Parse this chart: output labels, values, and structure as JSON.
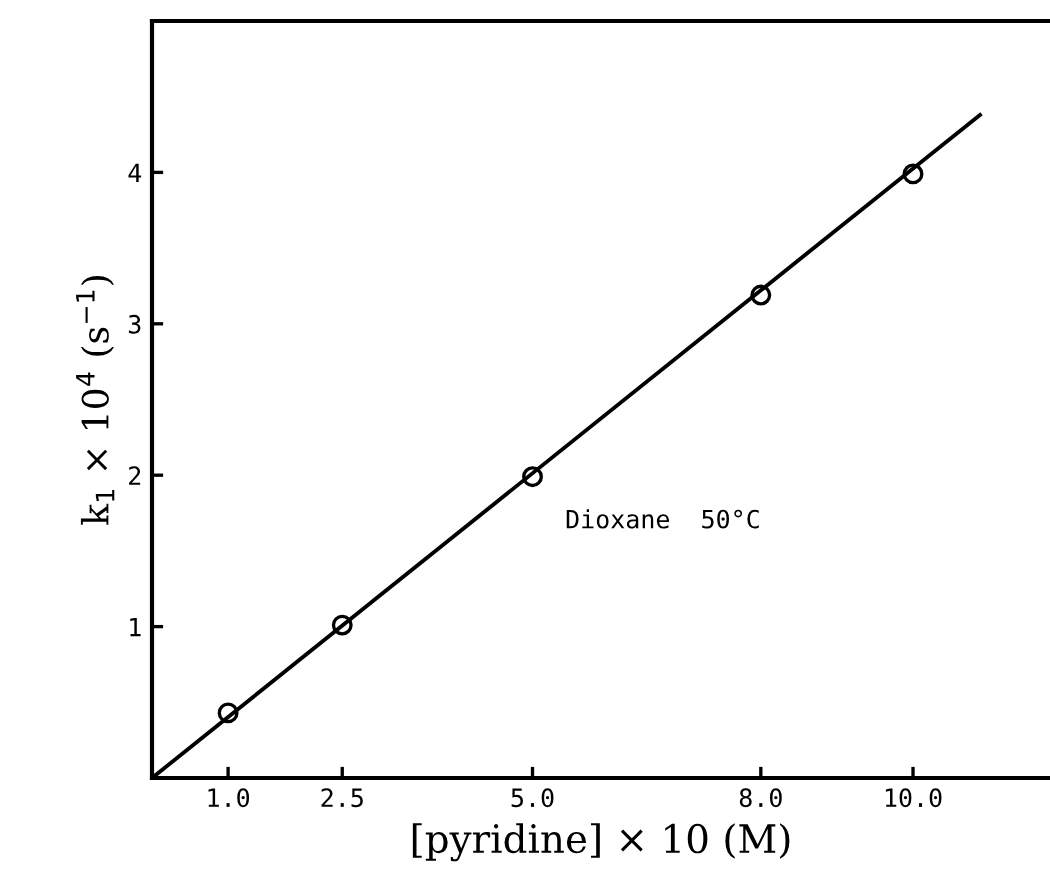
{
  "chart_data": {
    "type": "scatter",
    "xlabel": "[pyridine] × 10 (M)",
    "ylabel": "k$_{1}$ × 10$^{4}$ (s$^{−1}$)",
    "xlim": [
      0,
      11.8
    ],
    "ylim": [
      0,
      5
    ],
    "xticks": [
      {
        "value": 1,
        "label": "1.0"
      },
      {
        "value": 2.5,
        "label": "2.5"
      },
      {
        "value": 5,
        "label": "5.0"
      },
      {
        "value": 8,
        "label": "8.0"
      },
      {
        "value": 10,
        "label": "10.0"
      }
    ],
    "yticks": [
      1,
      2,
      3,
      4
    ],
    "annotations": [
      "Dioxane  50°C"
    ],
    "grid": false,
    "legend": false,
    "series": [
      {
        "color": "#000000",
        "marker": "circle",
        "x": [
          1.0,
          2.5,
          5.0,
          8.0,
          10.0
        ],
        "values": [
          0.43,
          1.01,
          1.99,
          3.19,
          3.99
        ]
      },
      {
        "type": "line",
        "color": "#000000",
        "marker": "none",
        "line_style": "solid",
        "x": [
          0,
          10.88
        ],
        "values": [
          0,
          4.38
        ]
      }
    ]
  }
}
